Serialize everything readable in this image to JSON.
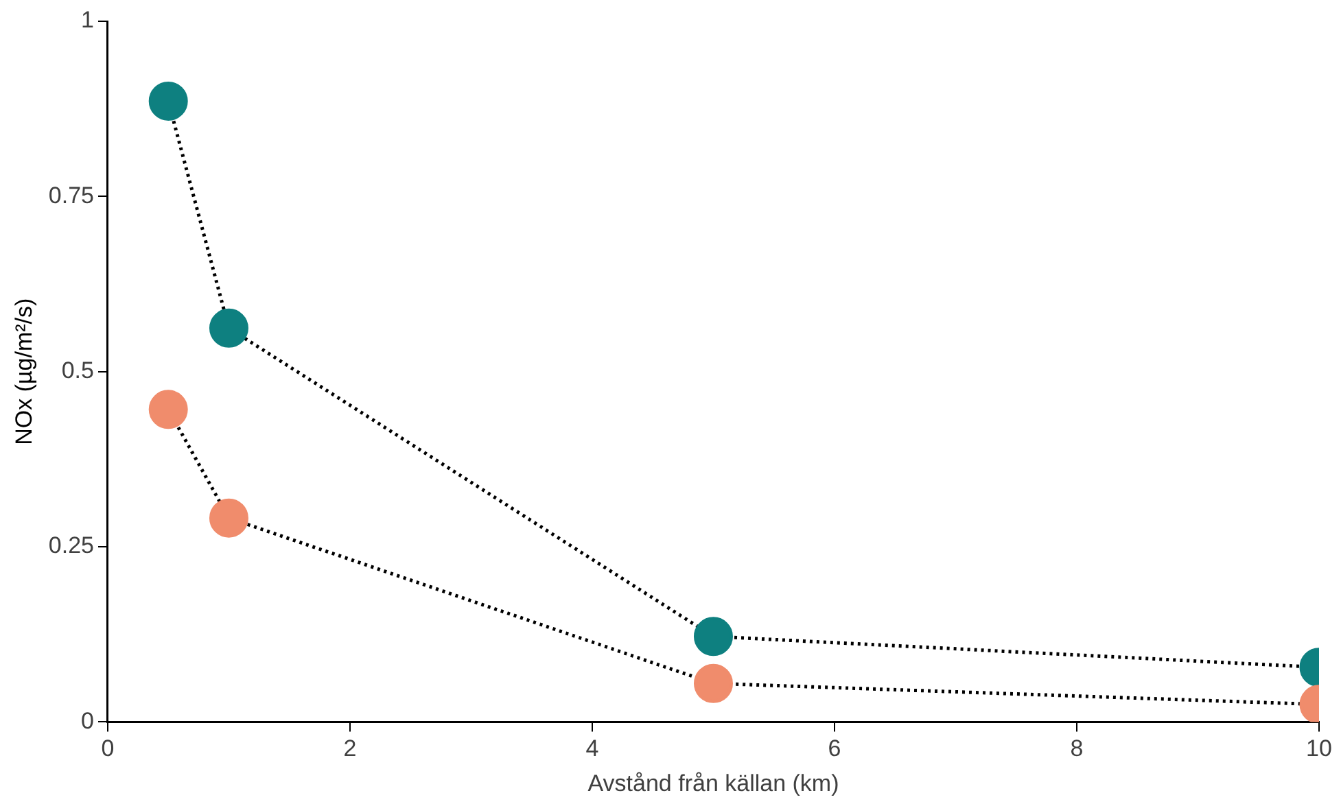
{
  "chart_data": {
    "type": "line",
    "xlabel": "Avstånd från källan (km)",
    "ylabel": "NOx (µg/m²/s)",
    "x": [
      0.5,
      1,
      5,
      10
    ],
    "series": [
      {
        "color": "#f08c6c",
        "values": [
          0.446,
          0.291,
          0.055,
          0.025
        ]
      },
      {
        "color": "#0e8080",
        "values": [
          0.886,
          0.562,
          0.122,
          0.078
        ]
      }
    ],
    "xlim": [
      0,
      10
    ],
    "xticks": [
      0,
      2,
      4,
      6,
      8,
      10
    ],
    "ylim": [
      0,
      1
    ],
    "yticks": [
      0,
      0.25,
      0.5,
      0.75,
      1
    ],
    "grid": false,
    "legend": false,
    "marker": "circle",
    "line_style": "dotted"
  }
}
